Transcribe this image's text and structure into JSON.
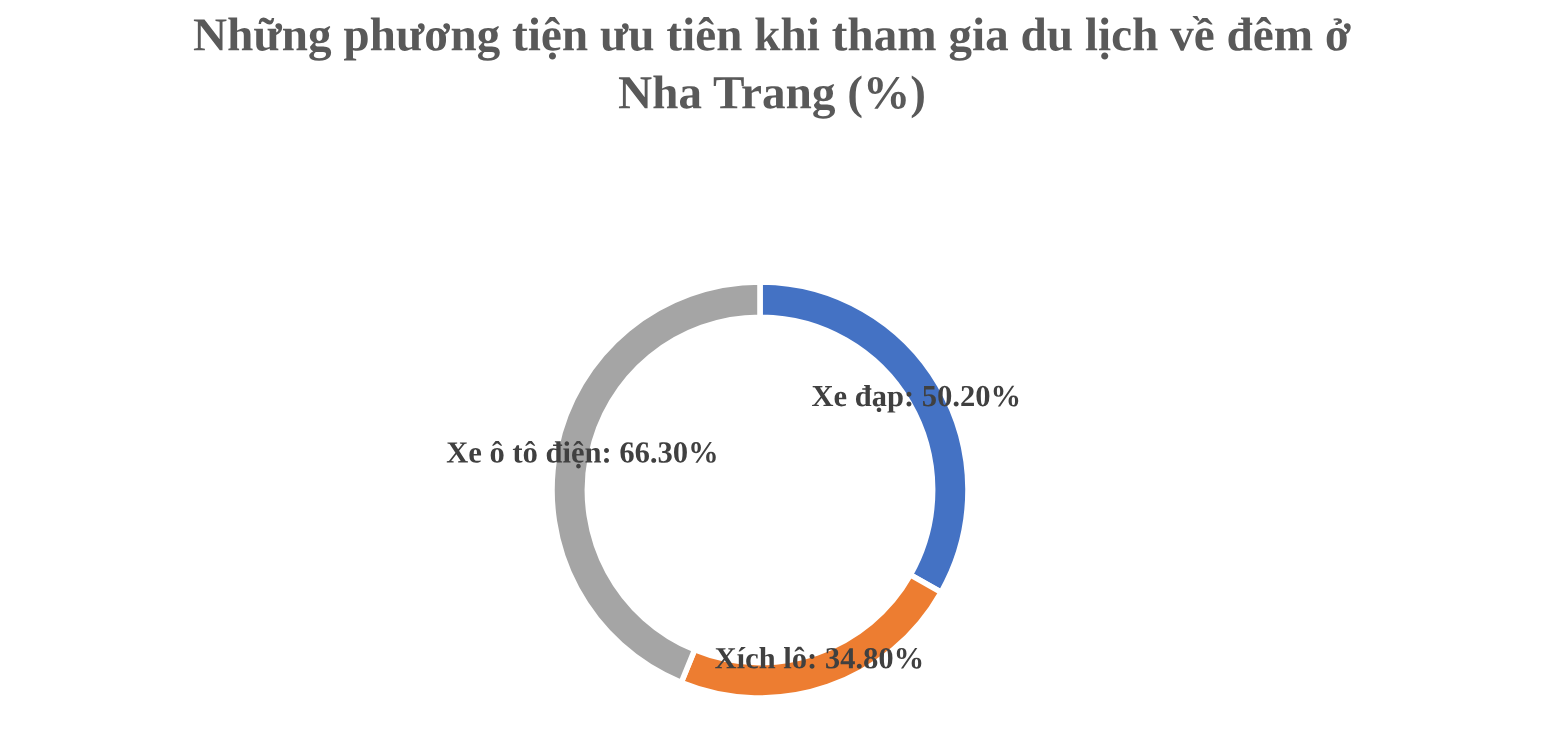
{
  "chart_data": {
    "type": "donut",
    "title": "Những phương tiện ưu tiên khi tham gia du lịch về đêm ở Nha Trang (%)",
    "categories": [
      "Xe đạp",
      "Xích lô",
      "Xe ô tô điện"
    ],
    "values": [
      50.2,
      34.8,
      66.3
    ],
    "colors": [
      "#4472c4",
      "#ed7d31",
      "#a5a5a5"
    ],
    "value_labels": [
      "50.20%",
      "34.80%",
      "66.30%"
    ],
    "legend": false
  }
}
